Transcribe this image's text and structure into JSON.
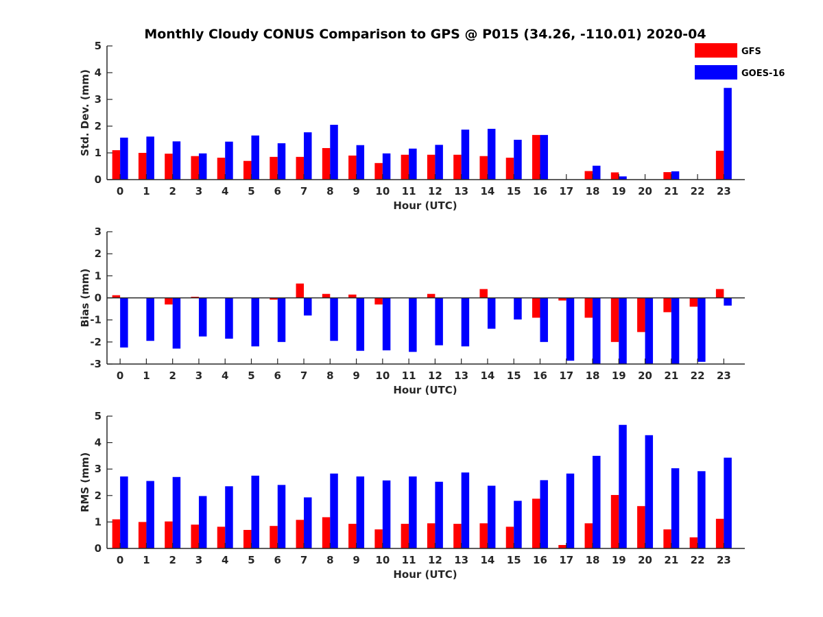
{
  "title": "Monthly Cloudy CONUS Comparison to GPS @ P015 (34.26, -110.01) 2020-04",
  "colors": {
    "GFS": "#ff0000",
    "GOES-16": "#0000ff",
    "axis": "#262626"
  },
  "legend": {
    "entries": [
      "GFS",
      "GOES-16"
    ],
    "placement": "top-right"
  },
  "chart_data": [
    {
      "type": "bar",
      "xlabel": "Hour (UTC)",
      "ylabel": "Std. Dev. (mm)",
      "ylim": [
        0,
        5
      ],
      "yticks": [
        0,
        1,
        2,
        3,
        4,
        5
      ],
      "categories": [
        "0",
        "1",
        "2",
        "3",
        "4",
        "5",
        "6",
        "7",
        "8",
        "9",
        "10",
        "11",
        "12",
        "13",
        "14",
        "15",
        "16",
        "17",
        "18",
        "19",
        "20",
        "21",
        "22",
        "23"
      ],
      "series": [
        {
          "name": "GFS",
          "values": [
            1.1,
            1.0,
            0.97,
            0.88,
            0.82,
            0.7,
            0.85,
            0.85,
            1.18,
            0.9,
            0.62,
            0.93,
            0.93,
            0.93,
            0.88,
            0.82,
            1.67,
            0,
            0.32,
            0.27,
            0,
            0.28,
            0,
            1.08
          ]
        },
        {
          "name": "GOES-16",
          "values": [
            1.57,
            1.61,
            1.43,
            0.98,
            1.42,
            1.65,
            1.36,
            1.77,
            2.05,
            1.29,
            0.98,
            1.16,
            1.3,
            1.87,
            1.9,
            1.49,
            1.67,
            0,
            0.52,
            0.12,
            0,
            0.31,
            0,
            3.43
          ]
        }
      ]
    },
    {
      "type": "bar",
      "xlabel": "Hour (UTC)",
      "ylabel": "Bias (mm)",
      "ylim": [
        -3,
        3
      ],
      "yticks": [
        -3,
        -2,
        -1,
        0,
        1,
        2,
        3
      ],
      "categories": [
        "0",
        "1",
        "2",
        "3",
        "4",
        "5",
        "6",
        "7",
        "8",
        "9",
        "10",
        "11",
        "12",
        "13",
        "14",
        "15",
        "16",
        "17",
        "18",
        "19",
        "20",
        "21",
        "22",
        "23"
      ],
      "series": [
        {
          "name": "GFS",
          "values": [
            0.12,
            0,
            -0.3,
            0.05,
            0,
            0,
            -0.08,
            0.65,
            0.18,
            0.15,
            -0.3,
            0,
            0.18,
            0,
            0.4,
            0,
            -0.9,
            -0.12,
            -0.9,
            -2.0,
            -1.55,
            -0.65,
            -0.4,
            0.4
          ]
        },
        {
          "name": "GOES-16",
          "values": [
            -2.25,
            -1.95,
            -2.3,
            -1.75,
            -1.85,
            -2.2,
            -2.0,
            -0.8,
            -1.95,
            -2.4,
            -2.38,
            -2.45,
            -2.15,
            -2.2,
            -1.4,
            -0.98,
            -2.0,
            -2.85,
            -3.0,
            -3.0,
            -3.0,
            -3.0,
            -2.9,
            -0.35
          ]
        }
      ]
    },
    {
      "type": "bar",
      "xlabel": "Hour (UTC)",
      "ylabel": "RMS (mm)",
      "ylim": [
        0,
        5
      ],
      "yticks": [
        0,
        1,
        2,
        3,
        4,
        5
      ],
      "categories": [
        "0",
        "1",
        "2",
        "3",
        "4",
        "5",
        "6",
        "7",
        "8",
        "9",
        "10",
        "11",
        "12",
        "13",
        "14",
        "15",
        "16",
        "17",
        "18",
        "19",
        "20",
        "21",
        "22",
        "23"
      ],
      "series": [
        {
          "name": "GFS",
          "values": [
            1.1,
            1.0,
            1.02,
            0.9,
            0.82,
            0.7,
            0.85,
            1.08,
            1.18,
            0.93,
            0.72,
            0.93,
            0.95,
            0.93,
            0.95,
            0.82,
            1.88,
            0.13,
            0.95,
            2.02,
            1.6,
            0.72,
            0.42,
            1.12
          ]
        },
        {
          "name": "GOES-16",
          "values": [
            2.72,
            2.55,
            2.7,
            1.98,
            2.35,
            2.75,
            2.4,
            1.93,
            2.83,
            2.72,
            2.57,
            2.72,
            2.52,
            2.87,
            2.37,
            1.8,
            2.58,
            2.83,
            3.5,
            4.67,
            4.28,
            3.03,
            2.92,
            3.43
          ]
        }
      ]
    }
  ]
}
